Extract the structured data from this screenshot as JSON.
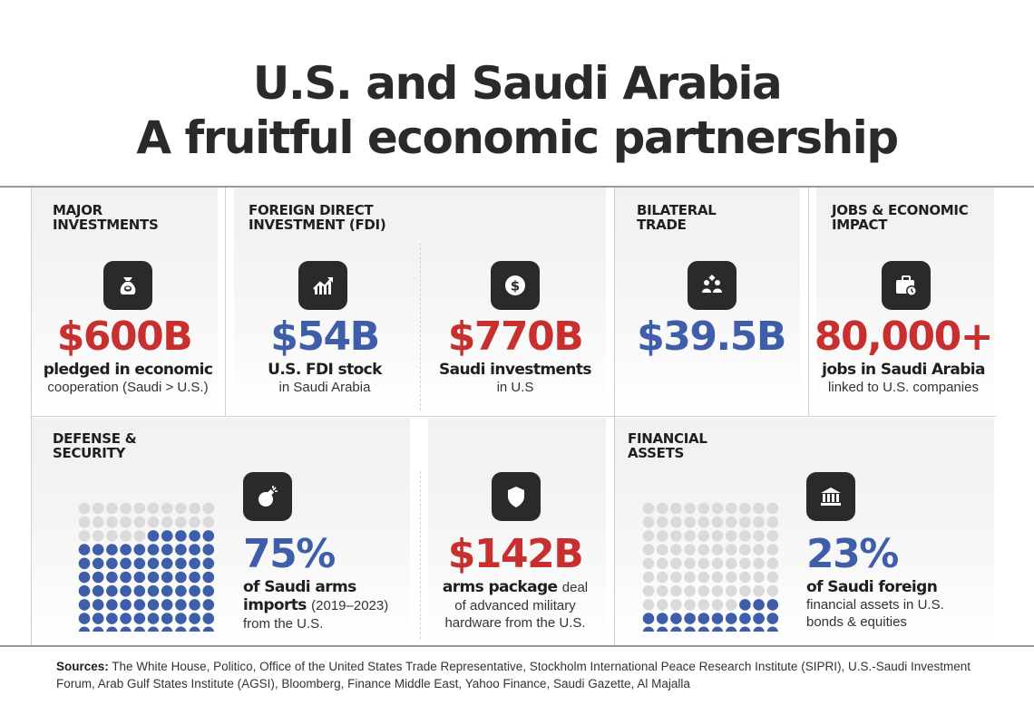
{
  "title": {
    "line1": "U.S. and Saudi Arabia",
    "line2": "A fruitful economic partnership"
  },
  "colors": {
    "red": "#c8302f",
    "blue": "#3e5ea9",
    "dark": "#2a2a2a",
    "dot_off": "#dadada"
  },
  "major_investments": {
    "heading": "MAJOR\nINVESTMENTS",
    "icon": "money-bag-icon",
    "value": "$600B",
    "caption_bold": "pledged in economic",
    "caption": "cooperation (Saudi > U.S.)"
  },
  "fdi": {
    "heading": "FOREIGN DIRECT\nINVESTMENT (FDI)",
    "us": {
      "icon": "chart-growth-icon",
      "value": "$54B",
      "caption_bold": "U.S. FDI stock",
      "caption": "in Saudi Arabia"
    },
    "saudi": {
      "icon": "dollar-coin-icon",
      "value": "$770B",
      "caption_bold": "Saudi investments",
      "caption": "in U.S"
    }
  },
  "bilateral_trade": {
    "heading": "BILATERAL\nTRADE",
    "icon": "handshake-people-icon",
    "value": "$39.5B"
  },
  "jobs": {
    "heading": "JOBS & ECONOMIC\nIMPACT",
    "icon": "briefcase-clock-icon",
    "value": "80,000+",
    "caption_bold": "jobs in Saudi Arabia",
    "caption": "linked to U.S. companies"
  },
  "defense": {
    "heading": "DEFENSE &\nSECURITY",
    "arms": {
      "icon": "bomb-icon",
      "value": "75%",
      "percent": 75,
      "caption_bold_1": "of Saudi arms",
      "caption_bold_2": "imports",
      "caption_years": "(2019–2023)",
      "caption": "from the U.S."
    },
    "package": {
      "icon": "shield-icon",
      "value": "$142B",
      "caption_bold": "arms package",
      "caption_1": "deal",
      "caption_2": "of advanced military",
      "caption_3": "hardware from the U.S."
    }
  },
  "financial": {
    "heading": "FINANCIAL\nASSETS",
    "icon": "bank-icon",
    "value": "23%",
    "percent": 23,
    "caption_bold": "of Saudi foreign",
    "caption_1": "financial assets in U.S.",
    "caption_2": "bonds & equities"
  },
  "sources": {
    "label": "Sources:",
    "text": "The White House, Politico, Office of the United States Trade Representative, Stockholm International Peace Research Institute (SIPRI), U.S.-Saudi Investment Forum, Arab Gulf States Institute (AGSI), Bloomberg, Finance Middle East, Yahoo Finance, Saudi Gazette, Al Majalla"
  }
}
